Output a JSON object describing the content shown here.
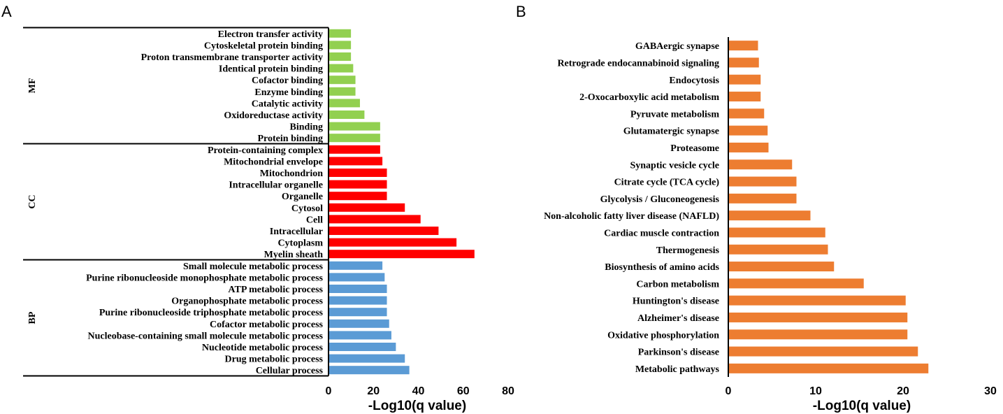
{
  "chart_data": [
    {
      "type": "bar",
      "orientation": "horizontal",
      "panel": "A",
      "xlabel": "-Log10(q value)",
      "xlim": [
        0,
        80
      ],
      "xticks": [
        0,
        20,
        40,
        60,
        80
      ],
      "grid": false,
      "groups": [
        {
          "name": "MF",
          "color": "#92d050",
          "categories": [
            "Electron transfer activity",
            "Cytoskeletal protein binding",
            "Proton transmembrane transporter activity",
            "Identical protein binding",
            "Cofactor binding",
            "Enzyme binding",
            "Catalytic activity",
            "Oxidoreductase activity",
            "Binding",
            "Protein binding"
          ],
          "values": [
            10,
            10,
            10,
            11,
            12,
            12,
            14,
            16,
            23,
            23
          ]
        },
        {
          "name": "CC",
          "color": "#ff0000",
          "categories": [
            "Protein-containing complex",
            "Mitochondrial envelope",
            "Mitochondrion",
            "Intracellular organelle",
            "Organelle",
            "Cytosol",
            "Cell",
            "Intracellular",
            "Cytoplasm",
            "Myelin sheath"
          ],
          "values": [
            23,
            24,
            26,
            26,
            26,
            34,
            41,
            49,
            57,
            65
          ]
        },
        {
          "name": "BP",
          "color": "#5b9bd5",
          "categories": [
            "Small molecule metabolic process",
            "Purine ribonucleoside monophosphate metabolic process",
            "ATP metabolic process",
            "Organophosphate metabolic process",
            "Purine ribonucleoside triphosphate metabolic process",
            "Cofactor metabolic process",
            "Nucleobase-containing small molecule metabolic process",
            "Nucleotide metabolic process",
            "Drug metabolic process",
            "Cellular process"
          ],
          "values": [
            24,
            25,
            26,
            26,
            26,
            27,
            28,
            30,
            34,
            36
          ]
        }
      ]
    },
    {
      "type": "bar",
      "orientation": "horizontal",
      "panel": "B",
      "xlabel": "-Log10(q value)",
      "xlim": [
        0,
        30
      ],
      "xticks": [
        0,
        10,
        20,
        30
      ],
      "grid": false,
      "color": "#ed7d31",
      "categories": [
        "GABAergic synapse",
        "Retrograde endocannabinoid signaling",
        "Endocytosis",
        "2-Oxocarboxylic acid metabolism",
        "Pyruvate metabolism",
        "Glutamatergic synapse",
        "Proteasome",
        "Synaptic vesicle cycle",
        "Citrate cycle (TCA cycle)",
        "Glycolysis / Gluconeogenesis",
        "Non-alcoholic fatty liver disease (NAFLD)",
        "Cardiac muscle contraction",
        "Thermogenesis",
        "Biosynthesis of amino acids",
        "Carbon metabolism",
        "Huntington's disease",
        "Alzheimer's disease",
        "Oxidative phosphorylation",
        "Parkinson's disease",
        "Metabolic pathways"
      ],
      "values": [
        3.4,
        3.5,
        3.7,
        3.7,
        4.1,
        4.5,
        4.6,
        7.3,
        7.8,
        7.8,
        9.4,
        11.1,
        11.4,
        12.1,
        15.5,
        20.3,
        20.5,
        20.5,
        21.7,
        22.9
      ]
    }
  ]
}
